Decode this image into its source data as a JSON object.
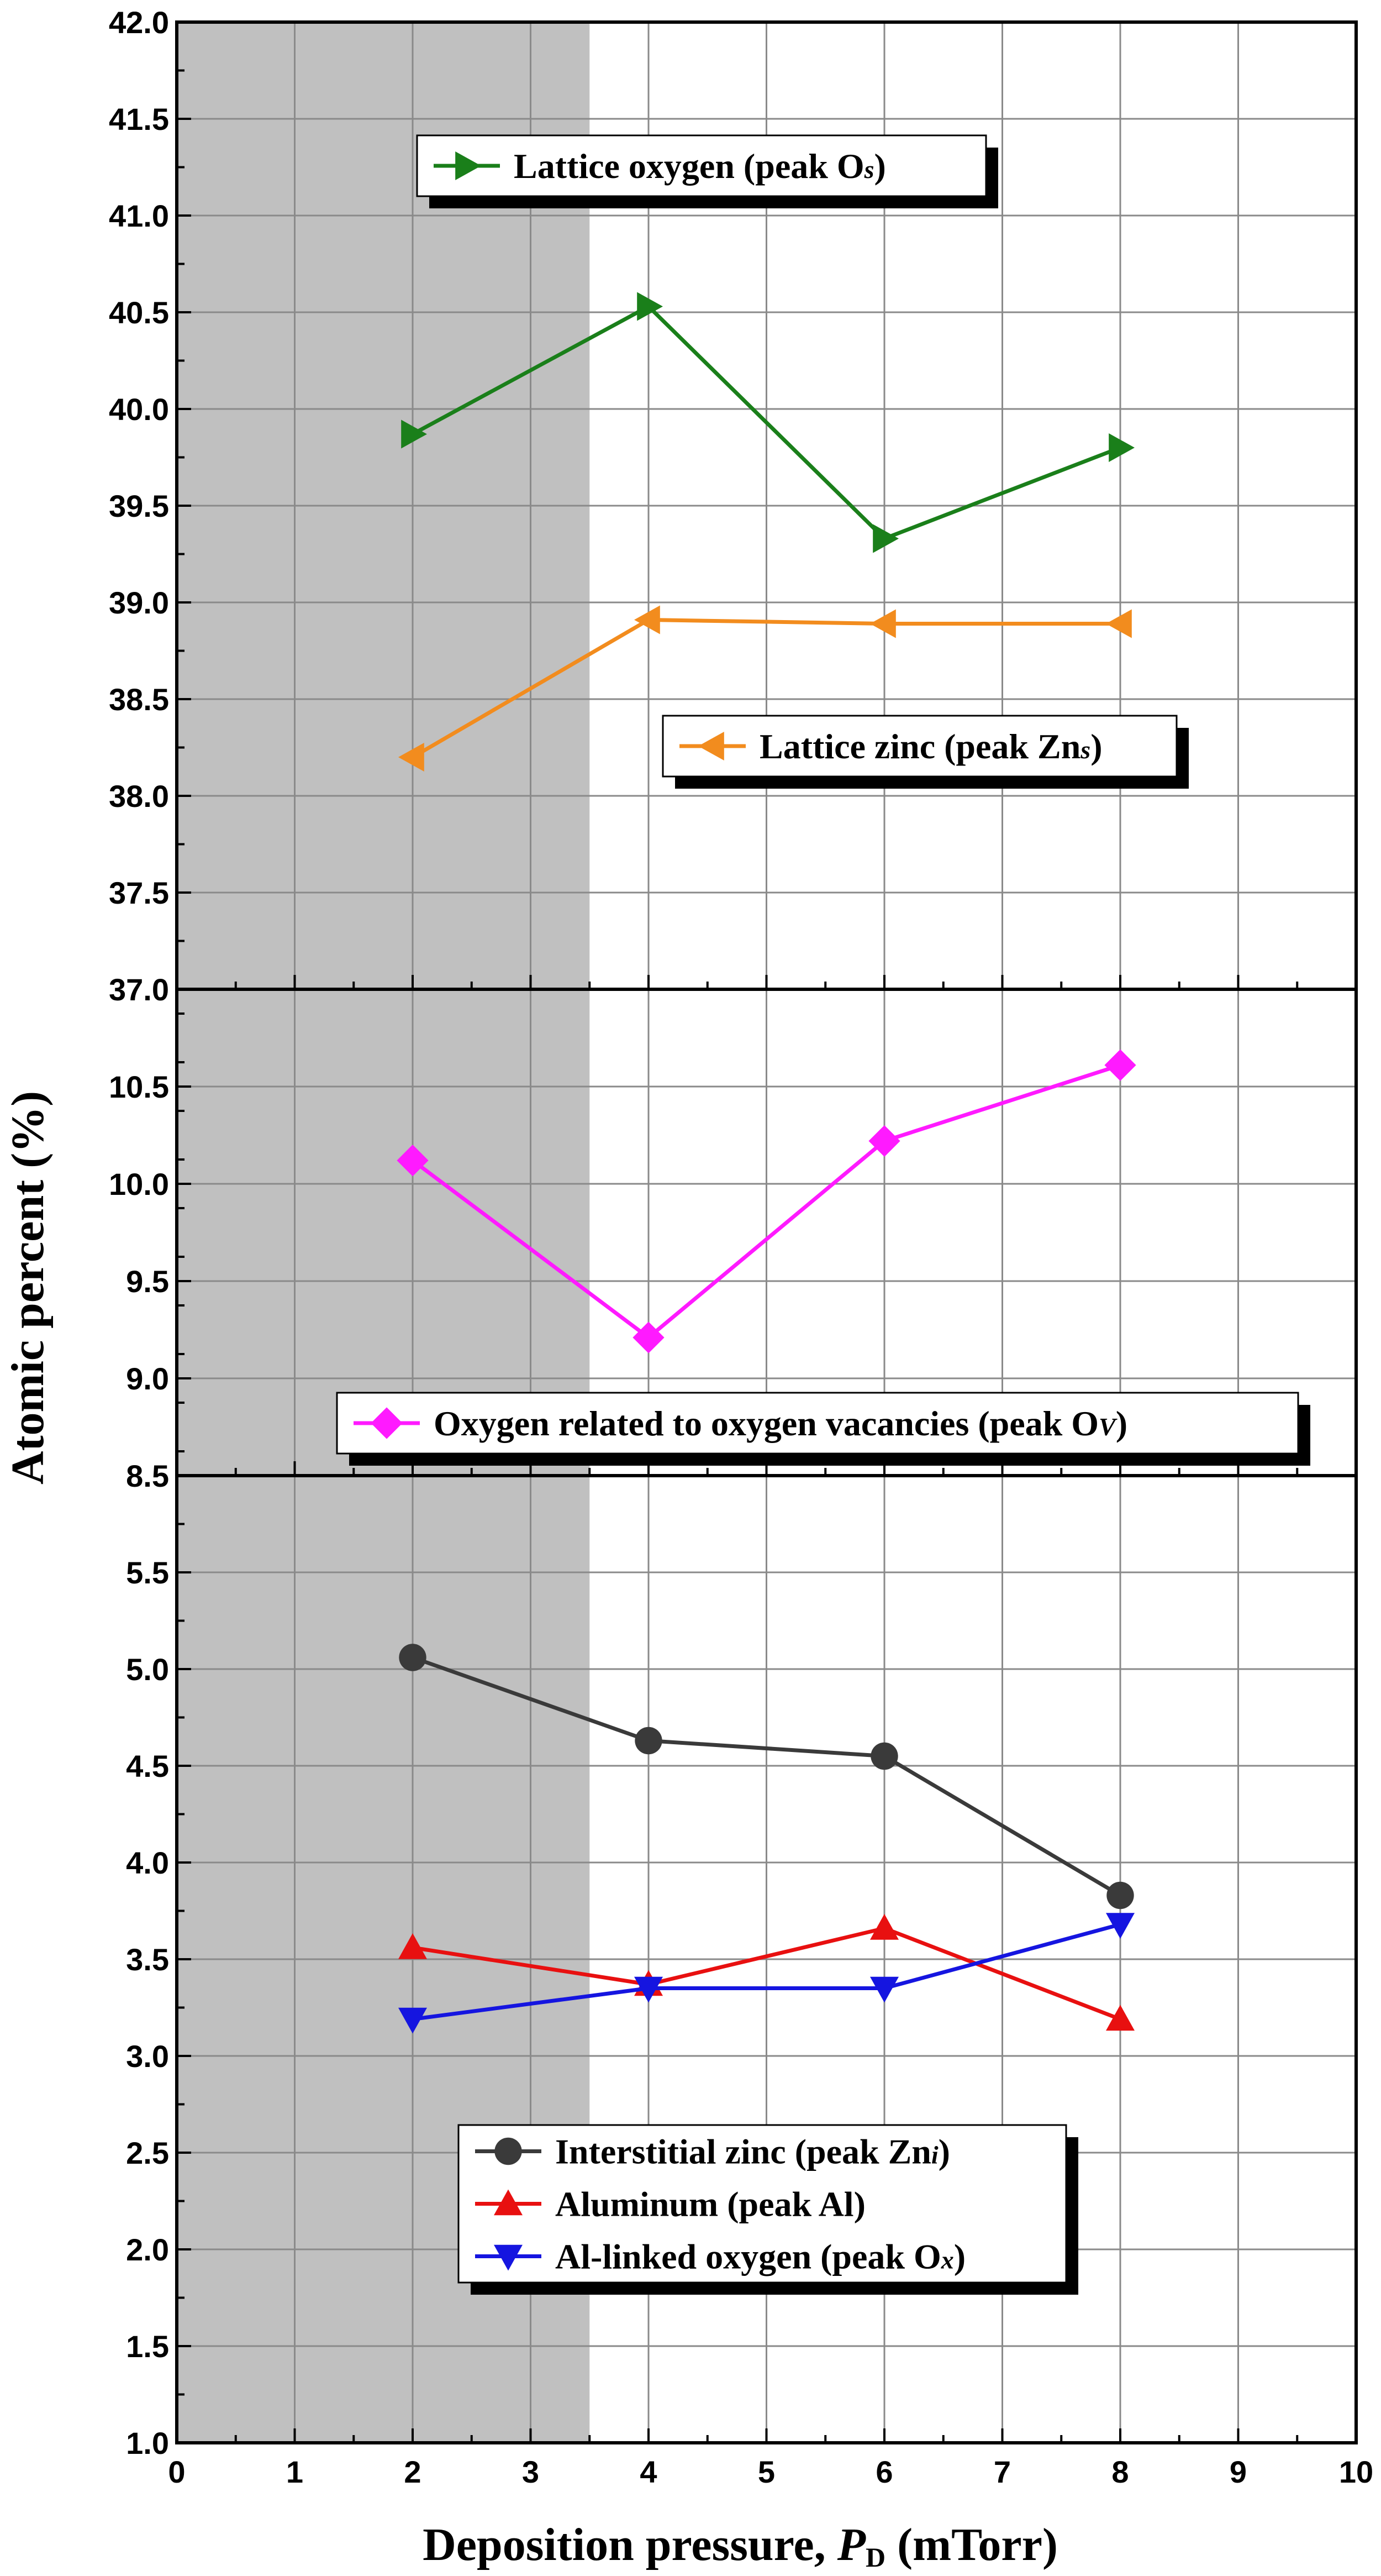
{
  "chart_data": {
    "type": "line",
    "xlabel": "Deposition pressure, ",
    "xlabel_italic": "P",
    "xlabel_sub": "D",
    "xlabel_unit": " (mTorr)",
    "ylabel": "Atomic percent (%)",
    "xlim": [
      0,
      10
    ],
    "x_ticks": [
      "0",
      "1",
      "2",
      "3",
      "4",
      "5",
      "6",
      "7",
      "8",
      "9",
      "10"
    ],
    "shaded_region_x": [
      0,
      3.5
    ],
    "grid": true,
    "panels": [
      {
        "ylim": [
          37.0,
          42.0
        ],
        "y_ticks": [
          "37.0",
          "37.5",
          "38.0",
          "38.5",
          "39.0",
          "39.5",
          "40.0",
          "40.5",
          "41.0",
          "41.5",
          "42.0"
        ],
        "series": [
          {
            "legend_pre": "Lattice oxygen (peak O",
            "legend_sub": "s",
            "legend_post": ")",
            "color": "#1a7f1a",
            "marker": "triangle-right",
            "x": [
              2,
              4,
              6,
              8
            ],
            "y": [
              39.87,
              40.53,
              39.33,
              39.8
            ]
          },
          {
            "legend_pre": "Lattice zinc (peak  Zn",
            "legend_sub": "s",
            "legend_post": ")",
            "color": "#f28c1e",
            "marker": "triangle-left",
            "x": [
              2,
              4,
              6,
              8
            ],
            "y": [
              38.2,
              38.91,
              38.89,
              38.89
            ]
          }
        ]
      },
      {
        "ylim": [
          8.5,
          11.0
        ],
        "y_ticks": [
          "8.5",
          "9.0",
          "9.5",
          "10.0",
          "10.5"
        ],
        "series": [
          {
            "legend_pre": "Oxygen related to oxygen vacancies (peak O",
            "legend_sub": "V",
            "legend_post": ")",
            "color": "#ff1aff",
            "marker": "diamond",
            "x": [
              2,
              4,
              6,
              8
            ],
            "y": [
              10.12,
              9.21,
              10.22,
              10.61
            ]
          }
        ]
      },
      {
        "ylim": [
          1.0,
          6.0
        ],
        "y_ticks": [
          "1.0",
          "1.5",
          "2.0",
          "2.5",
          "3.0",
          "3.5",
          "4.0",
          "4.5",
          "5.0",
          "5.5"
        ],
        "series": [
          {
            "legend_pre": "Interstitial zinc (peak Zn",
            "legend_sub": "i",
            "legend_post": ")",
            "color": "#3a3a3a",
            "marker": "circle",
            "x": [
              2,
              4,
              6,
              8
            ],
            "y": [
              5.06,
              4.63,
              4.55,
              3.83
            ]
          },
          {
            "legend_pre": "Aluminum (peak Al)",
            "legend_sub": "",
            "legend_post": "",
            "color": "#e81010",
            "marker": "triangle-up",
            "x": [
              2,
              4,
              6,
              8
            ],
            "y": [
              3.56,
              3.37,
              3.66,
              3.19
            ]
          },
          {
            "legend_pre": "Al-linked oxygen (peak O",
            "legend_sub": "x",
            "legend_post": ")",
            "color": "#1515e0",
            "marker": "triangle-down",
            "x": [
              2,
              4,
              6,
              8
            ],
            "y": [
              3.19,
              3.35,
              3.35,
              3.68
            ]
          }
        ]
      }
    ]
  }
}
